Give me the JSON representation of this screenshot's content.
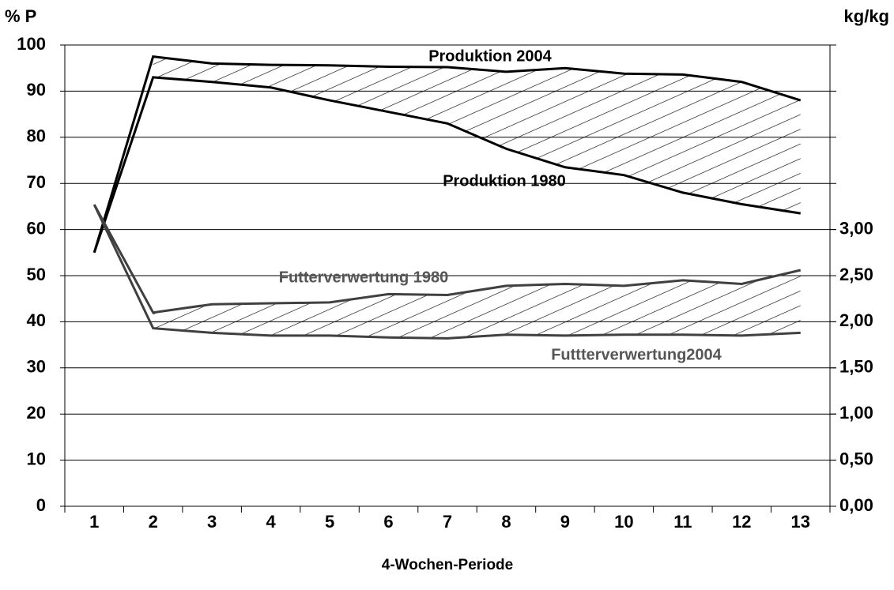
{
  "chart_data": {
    "type": "line",
    "y_label": "% P",
    "y2_label": "kg/kg",
    "x_label": "4-Wochen-Periode",
    "categories": [
      "1",
      "2",
      "3",
      "4",
      "5",
      "6",
      "7",
      "8",
      "9",
      "10",
      "11",
      "12",
      "13"
    ],
    "ylim": [
      0,
      100
    ],
    "yticks": [
      0,
      10,
      20,
      30,
      40,
      50,
      60,
      70,
      80,
      90,
      100
    ],
    "y2lim": [
      0,
      5
    ],
    "y2ticks": [
      {
        "value": 0,
        "label": "0,00"
      },
      {
        "value": 0.5,
        "label": "0,50"
      },
      {
        "value": 1,
        "label": "1,00"
      },
      {
        "value": 1.5,
        "label": "1,50"
      },
      {
        "value": 2,
        "label": "2,00"
      },
      {
        "value": 2.5,
        "label": "2,50"
      },
      {
        "value": 3,
        "label": "3,00"
      }
    ],
    "grid": true,
    "series": [
      {
        "name": "Produktion 2004",
        "color": "#000000",
        "values": [
          55,
          97.5,
          96,
          95.7,
          95.6,
          95.3,
          95.2,
          94.2,
          95,
          93.8,
          93.6,
          92,
          88
        ]
      },
      {
        "name": "Produktion 1980",
        "color": "#000000",
        "values": [
          55,
          93,
          92,
          90.8,
          88,
          85.5,
          83,
          77.5,
          73.5,
          71.8,
          68,
          65.5,
          63.5
        ]
      },
      {
        "name": "Futterverwertung 1980",
        "color": "#404040",
        "axis": "y2",
        "values": [
          3.27,
          2.1,
          2.19,
          2.2,
          2.21,
          2.3,
          2.29,
          2.39,
          2.41,
          2.39,
          2.45,
          2.41,
          2.56
        ]
      },
      {
        "name": "Futtterverwertung2004",
        "color": "#404040",
        "axis": "y2",
        "values": [
          3.27,
          1.93,
          1.88,
          1.85,
          1.85,
          1.83,
          1.82,
          1.86,
          1.85,
          1.86,
          1.86,
          1.85,
          1.88
        ]
      }
    ]
  }
}
